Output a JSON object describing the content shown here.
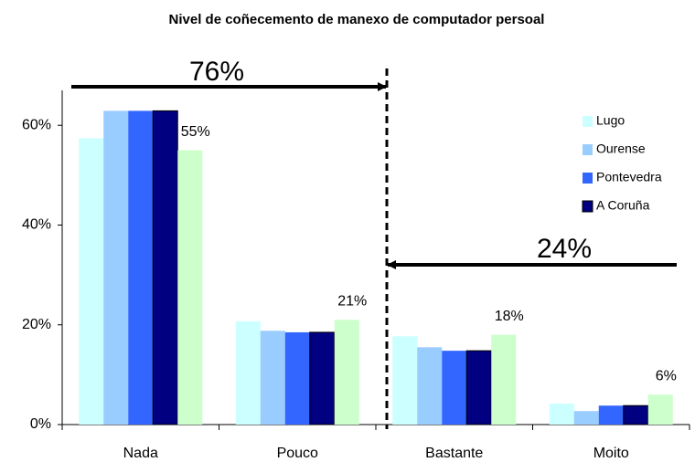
{
  "chart_data": {
    "type": "bar",
    "title": "Nivel de coñecemento de manexo de computador persoal",
    "categories": [
      "Nada",
      "Pouco",
      "Bastante",
      "Moito"
    ],
    "series": [
      {
        "name": "Lugo",
        "color": "#ccffff",
        "values": [
          57.4,
          20.7,
          17.7,
          4.2
        ]
      },
      {
        "name": "Ourense",
        "color": "#99ccff",
        "values": [
          62.9,
          18.8,
          15.5,
          2.7
        ]
      },
      {
        "name": "Pontevedra",
        "color": "#3366ff",
        "values": [
          62.9,
          18.5,
          14.8,
          3.8
        ]
      },
      {
        "name": "A Coruña",
        "color": "#000080",
        "values": [
          62.9,
          18.5,
          14.8,
          3.8
        ]
      },
      {
        "color": "#ccffcc",
        "values": [
          55,
          21,
          18,
          6
        ],
        "value_labels": [
          "55%",
          "21%",
          "18%",
          "6%"
        ]
      }
    ],
    "ylim": [
      0,
      67
    ],
    "yticks": [
      {
        "value": 0,
        "label": "0%"
      },
      {
        "value": 20,
        "label": "20%"
      },
      {
        "value": 40,
        "label": "40%"
      },
      {
        "value": 60,
        "label": "60%"
      }
    ],
    "legend": "upper right",
    "annotations": [
      "76%",
      "24%"
    ]
  }
}
